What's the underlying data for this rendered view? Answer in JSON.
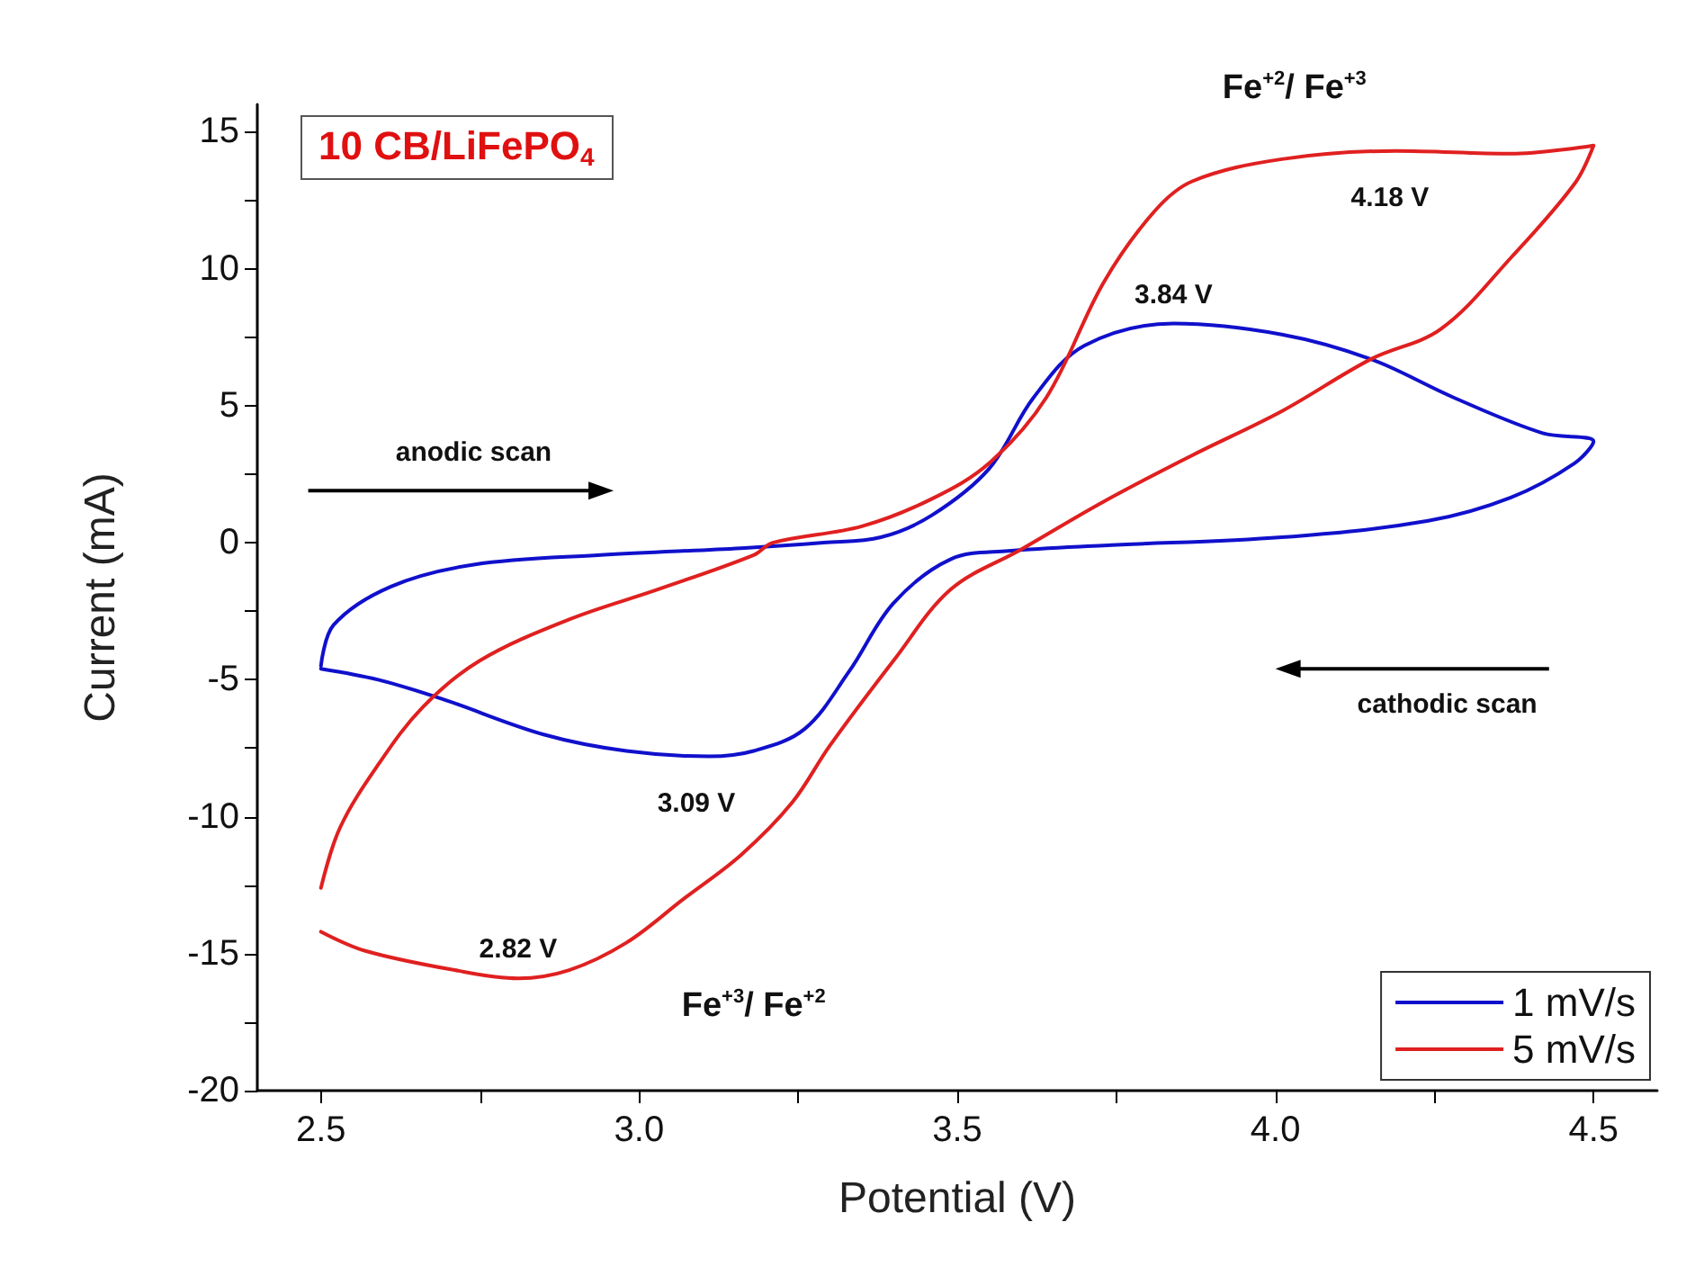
{
  "chart_data": {
    "type": "line",
    "title": "10 CB/LiFePO$_{4}$",
    "xlabel": "Potential (V)",
    "ylabel": "Current (mA)",
    "xlim": [
      2.4,
      4.6
    ],
    "ylim": [
      -20,
      16
    ],
    "xticks": [
      2.5,
      {
        "value": 2.75,
        "label": null
      },
      {
        "value": 3.0,
        "label": "3.0"
      },
      {
        "value": 3.25,
        "label": null
      },
      3.5,
      {
        "value": 3.75,
        "label": null
      },
      {
        "value": 4.0,
        "label": "4.0"
      },
      {
        "value": 4.25,
        "label": null
      },
      4.5
    ],
    "yticks": [
      -20,
      {
        "value": -17.5,
        "label": null
      },
      -15,
      {
        "value": -12.5,
        "label": null
      },
      -10,
      {
        "value": -7.5,
        "label": null
      },
      -5,
      {
        "value": -2.5,
        "label": null
      },
      0,
      {
        "value": 2.5,
        "label": null
      },
      5,
      {
        "value": 7.5,
        "label": null
      },
      10,
      {
        "value": 12.5,
        "label": null
      },
      15
    ],
    "grid": false,
    "legend": "bottom right",
    "marker": "none",
    "line_style": "solid",
    "series": [
      {
        "name": "1 mV/s",
        "color": "#1010cc",
        "x": [
          2.5,
          2.52,
          2.61,
          2.74,
          2.94,
          3.16,
          3.29,
          3.38,
          3.46,
          3.55,
          3.62,
          3.7,
          3.84,
          4.01,
          4.15,
          4.28,
          4.42,
          4.5,
          4.47,
          4.37,
          4.24,
          4.01,
          3.73,
          3.58,
          3.49,
          3.4,
          3.33,
          3.26,
          3.18,
          3.11,
          2.98,
          2.85,
          2.69,
          2.59,
          2.5
        ],
        "values": [
          -4.5,
          -3.0,
          -1.6,
          -0.8,
          -0.45,
          -0.2,
          0,
          0.2,
          1.0,
          2.7,
          5.3,
          7.2,
          8.0,
          7.6,
          6.7,
          5.3,
          4.0,
          3.7,
          2.9,
          1.65,
          0.8,
          0.2,
          -0.1,
          -0.3,
          -0.6,
          -2.2,
          -4.7,
          -6.8,
          -7.6,
          -7.8,
          -7.6,
          -7.0,
          -5.7,
          -5.0,
          -4.6
        ]
      },
      {
        "name": "5 mV/s",
        "color": "#e02020",
        "x": [
          2.5,
          2.53,
          2.59,
          2.66,
          2.75,
          2.89,
          3.03,
          3.18,
          3.21,
          3.35,
          3.46,
          3.55,
          3.64,
          3.73,
          3.81,
          3.87,
          4.01,
          4.19,
          4.37,
          4.5,
          4.47,
          4.37,
          4.26,
          4.15,
          4.01,
          3.87,
          3.73,
          3.6,
          3.49,
          3.4,
          3.3,
          3.24,
          3.16,
          3.07,
          2.98,
          2.89,
          2.81,
          2.71,
          2.57,
          2.5
        ],
        "values": [
          -12.6,
          -10.4,
          -8.1,
          -6.0,
          -4.3,
          -2.8,
          -1.7,
          -0.45,
          0,
          0.6,
          1.6,
          2.9,
          5.3,
          9.5,
          12.1,
          13.2,
          14.0,
          14.3,
          14.2,
          14.5,
          13.1,
          10.4,
          7.8,
          6.7,
          4.8,
          3.2,
          1.5,
          -0.25,
          -1.7,
          -4.3,
          -7.4,
          -9.5,
          -11.4,
          -13.0,
          -14.6,
          -15.6,
          -15.9,
          -15.6,
          -14.9,
          -14.2
        ]
      }
    ],
    "annotations": [
      {
        "text": "4.18 V",
        "x": 4.18,
        "y": 14.3
      },
      {
        "text": "3.84 V",
        "x": 3.84,
        "y": 8.0
      },
      {
        "text": "3.09 V",
        "x": 3.09,
        "y": -7.8
      },
      {
        "text": "2.82 V",
        "x": 2.81,
        "y": -15.9
      },
      "Fe$^{+2}$/ Fe$^{+3}$",
      "Fe$^{+3}$/ Fe$^{+2}$",
      "anodic scan",
      "cathodic scan"
    ]
  }
}
